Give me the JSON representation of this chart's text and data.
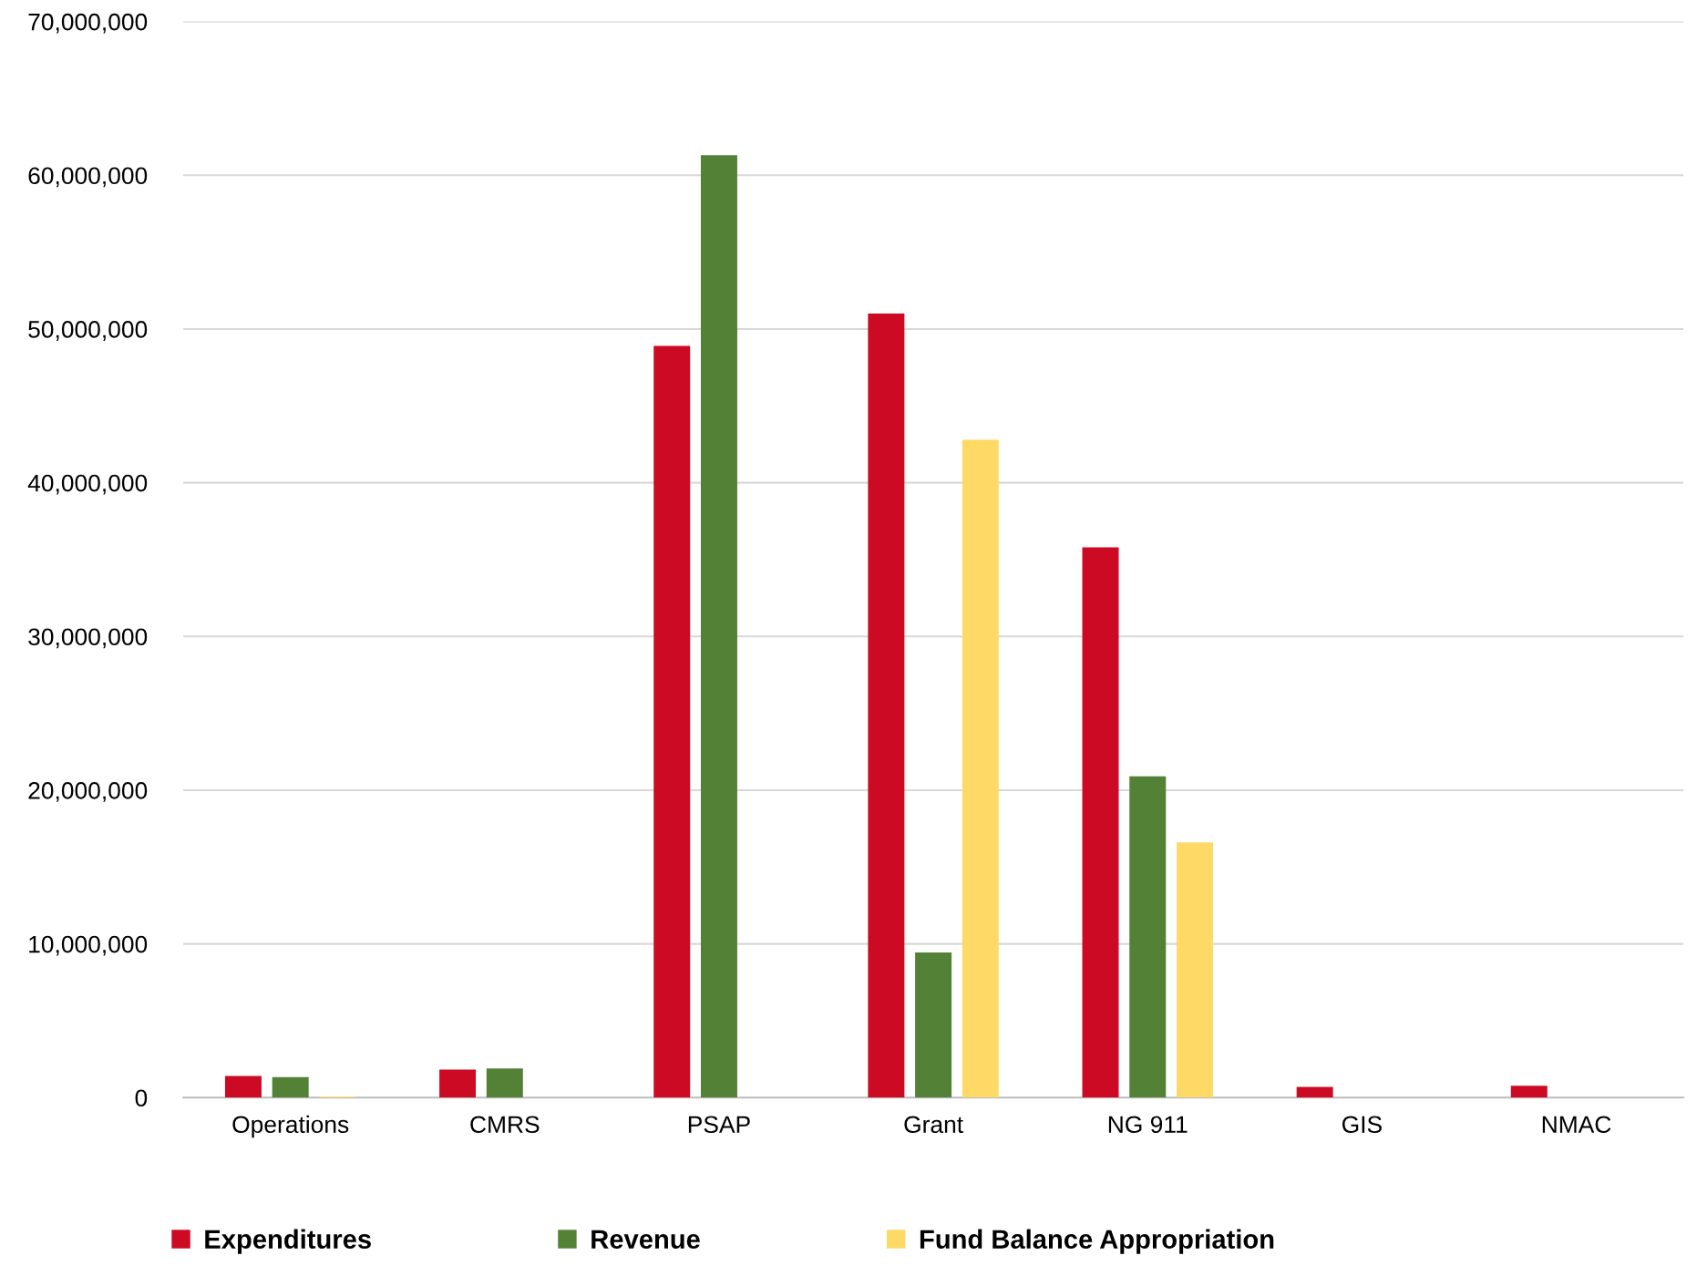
{
  "chart_data": {
    "type": "bar",
    "categories": [
      "Operations",
      "CMRS",
      "PSAP",
      "Grant",
      "NG 911",
      "GIS",
      "NMAC"
    ],
    "series": [
      {
        "name": "Expenditures",
        "color": "#cc0a24",
        "values": [
          1410000,
          1830000,
          48900000,
          51000000,
          35800000,
          700000,
          770000
        ]
      },
      {
        "name": "Revenue",
        "color": "#538135",
        "values": [
          1340000,
          1900000,
          61300000,
          9440000,
          20900000,
          null,
          null
        ]
      },
      {
        "name": "Fund Balance Appropriation",
        "color": "#ffd966",
        "values": [
          70000,
          null,
          null,
          42800000,
          16600000,
          null,
          null
        ]
      }
    ],
    "ylim": [
      0,
      70000000
    ],
    "yticks": [
      0,
      {
        "value": 10000000,
        "label": "10,000,000"
      },
      {
        "value": 20000000,
        "label": "20,000,000"
      },
      {
        "value": 30000000,
        "label": "30,000,000"
      },
      {
        "value": 40000000,
        "label": "40,000,000"
      },
      {
        "value": 50000000,
        "label": "50,000,000"
      },
      {
        "value": 60000000,
        "label": "60,000,000"
      },
      {
        "value": 70000000,
        "label": "70,000,000"
      }
    ],
    "grid": "y",
    "legend": "bottom"
  }
}
